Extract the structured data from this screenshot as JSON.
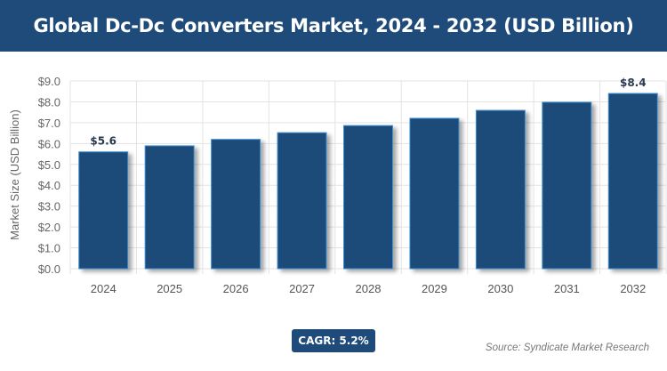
{
  "title": "Global Dc-Dc Converters Market, 2024 - 2032 (USD Billion)",
  "cagr_label": "CAGR: 5.2%",
  "source": "Source: Syndicate Market Research",
  "colors": {
    "header": "#1f4b7a",
    "bar": "#1f4b7a",
    "bar_edge": "#3f8fd0"
  },
  "chart_data": {
    "type": "bar",
    "title": "Global Dc-Dc Converters Market, 2024 - 2032 (USD Billion)",
    "xlabel": "",
    "ylabel": "Market Size (USD Billion)",
    "categories": [
      "2024",
      "2025",
      "2026",
      "2027",
      "2028",
      "2029",
      "2030",
      "2031",
      "2032"
    ],
    "values": [
      5.6,
      5.89,
      6.2,
      6.52,
      6.86,
      7.21,
      7.59,
      7.98,
      8.4
    ],
    "data_labels": {
      "0": "$5.6",
      "8": "$8.4"
    },
    "ylim": [
      0,
      9
    ],
    "yticks": [
      "$0.0",
      "$1.0",
      "$2.0",
      "$3.0",
      "$4.0",
      "$5.0",
      "$6.0",
      "$7.0",
      "$8.0",
      "$9.0"
    ],
    "grid": true,
    "legend": "none"
  }
}
